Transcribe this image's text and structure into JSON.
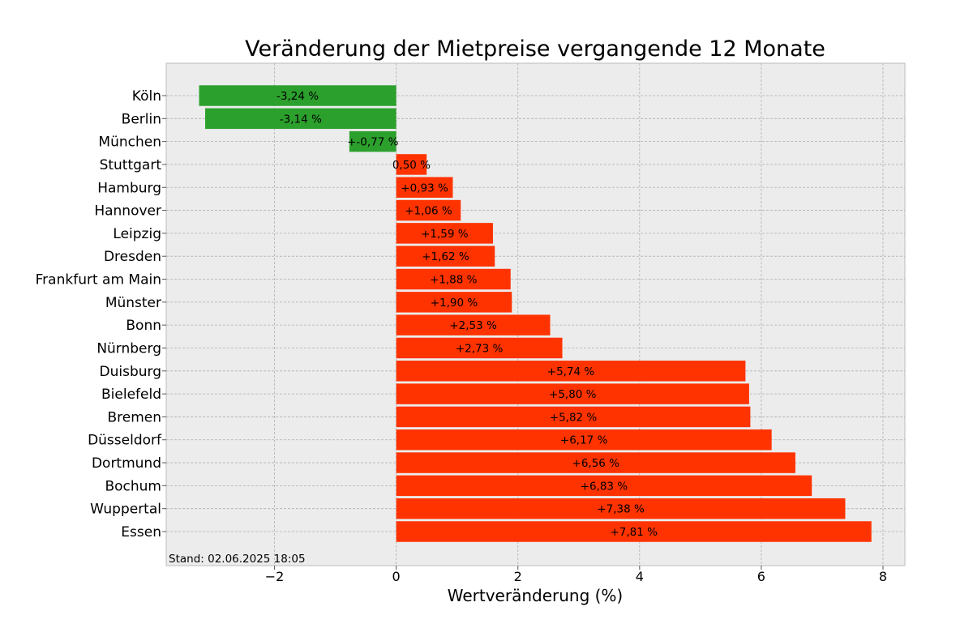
{
  "chart_data": {
    "type": "bar",
    "orientation": "horizontal",
    "title": "Veränderung der Mietpreise vergangende 12 Monate",
    "xlabel": "Wertveränderung (%)",
    "ylabel": "",
    "xlim": [
      -3.78,
      8.36
    ],
    "xticks": [
      -2,
      0,
      2,
      4,
      6,
      8
    ],
    "xtick_labels": [
      "−2",
      "0",
      "2",
      "4",
      "6",
      "8"
    ],
    "grid": true,
    "footnote": "Stand: 02.06.2025 18:05",
    "colors": {
      "negative": "#2ca02c",
      "positive": "#ff3300",
      "background": "#ececec",
      "grid": "#b0b0b0"
    },
    "categories": [
      "Köln",
      "Berlin",
      "München",
      "Stuttgart",
      "Hamburg",
      "Hannover",
      "Leipzig",
      "Dresden",
      "Frankfurt am Main",
      "Münster",
      "Bonn",
      "Nürnberg",
      "Duisburg",
      "Bielefeld",
      "Bremen",
      "Düsseldorf",
      "Dortmund",
      "Bochum",
      "Wuppertal",
      "Essen"
    ],
    "values": [
      -3.24,
      -3.14,
      -0.77,
      0.5,
      0.93,
      1.06,
      1.59,
      1.62,
      1.88,
      1.9,
      2.53,
      2.73,
      5.74,
      5.8,
      5.82,
      6.17,
      6.56,
      6.83,
      7.38,
      7.81
    ],
    "data_labels": [
      "-3,24 %",
      "-3,14 %",
      "+-0,77 %",
      "0,50 %",
      "+0,93 %",
      "+1,06 %",
      "+1,59 %",
      "+1,62 %",
      "+1,88 %",
      "+1,90 %",
      "+2,53 %",
      "+2,73 %",
      "+5,74 %",
      "+5,80 %",
      "+5,82 %",
      "+6,17 %",
      "+6,56 %",
      "+6,83 %",
      "+7,38 %",
      "+7,81 %"
    ]
  }
}
